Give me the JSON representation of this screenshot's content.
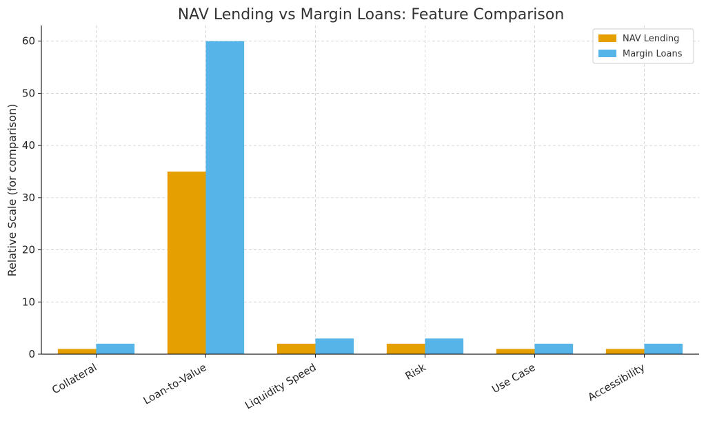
{
  "chart_data": {
    "type": "bar",
    "title": "NAV Lending vs Margin Loans: Feature Comparison",
    "xlabel": "",
    "ylabel": "Relative Scale (for comparison)",
    "categories": [
      "Collateral",
      "Loan-to-Value",
      "Liquidity Speed",
      "Risk",
      "Use Case",
      "Accessibility"
    ],
    "series": [
      {
        "name": "NAV Lending",
        "values": [
          1,
          35,
          2,
          2,
          1,
          1
        ],
        "color": "#E69F00"
      },
      {
        "name": "Margin Loans",
        "values": [
          2,
          60,
          3,
          3,
          2,
          2
        ],
        "color": "#56B4E9"
      }
    ],
    "ylim": [
      0,
      63
    ],
    "yticks": [
      0,
      10,
      20,
      30,
      40,
      50,
      60
    ],
    "grid": true,
    "legend_position": "top-right"
  }
}
